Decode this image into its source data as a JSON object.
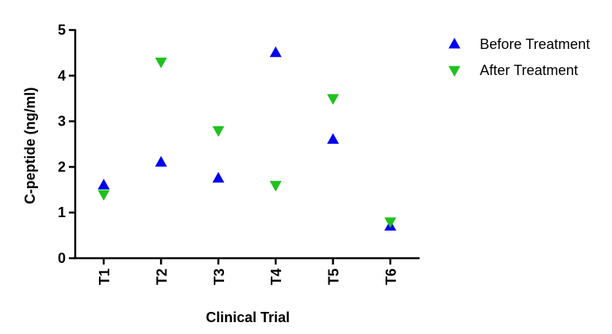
{
  "chart_data": {
    "type": "scatter",
    "categories": [
      "T1",
      "T2",
      "T3",
      "T4",
      "T5",
      "T6"
    ],
    "series": [
      {
        "name": "Before Treatment",
        "marker": "triangle-up",
        "color": "#0000ee",
        "values": [
          1.6,
          2.1,
          1.75,
          4.5,
          2.6,
          0.7
        ]
      },
      {
        "name": "After Treatment",
        "marker": "triangle-down",
        "color": "#1ec21e",
        "values": [
          1.4,
          4.3,
          2.8,
          1.6,
          3.5,
          0.8
        ]
      }
    ],
    "xlabel": "Clinical Trial",
    "ylabel": "C-peptide (ng/ml)",
    "ylim": [
      0,
      5
    ],
    "yticks": [
      "0",
      "1",
      "2",
      "3",
      "4",
      "5"
    ],
    "grid": false,
    "legend_position": "top-right"
  }
}
